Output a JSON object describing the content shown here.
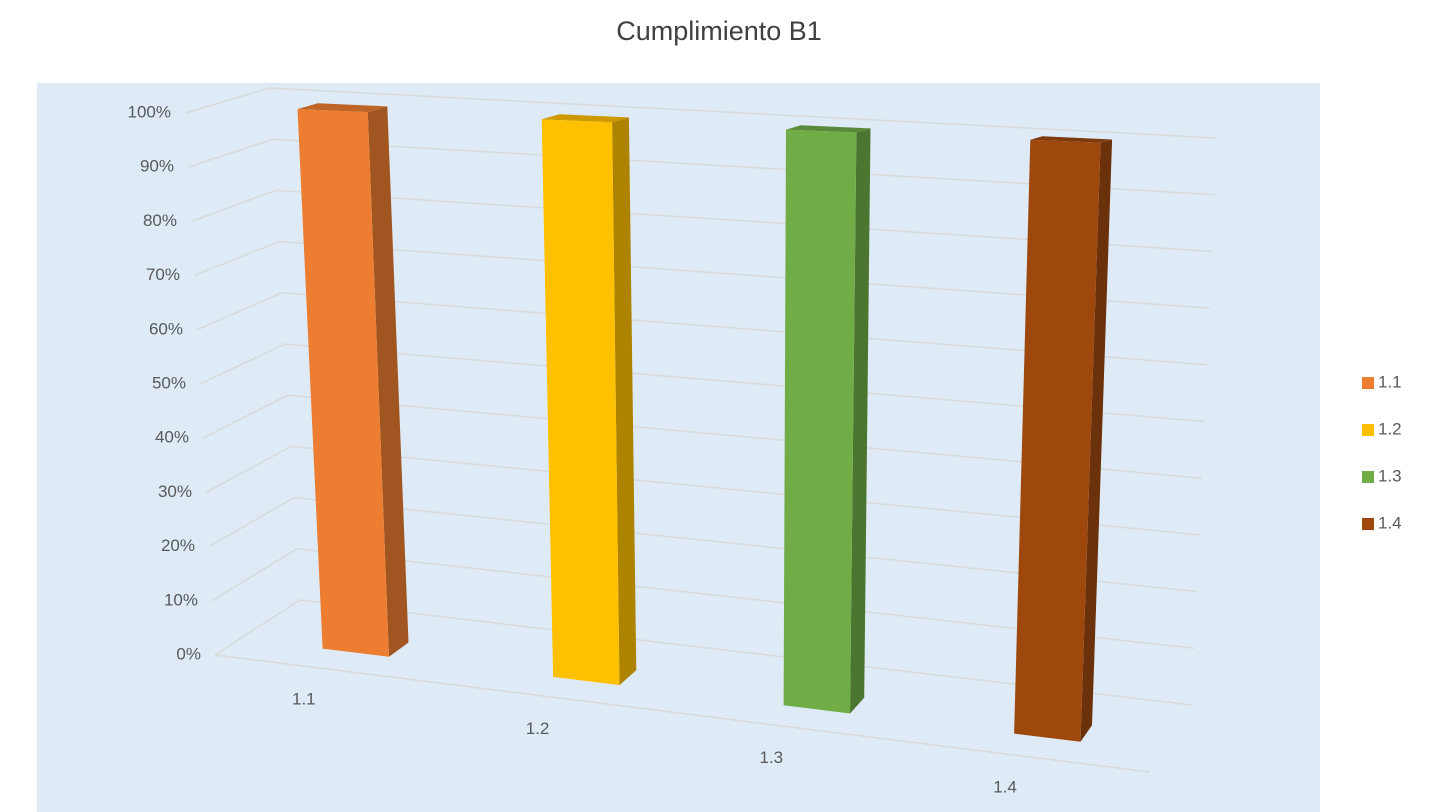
{
  "chart_data": {
    "type": "bar3d",
    "title": "Cumplimiento B1",
    "categories": [
      "1.1",
      "1.2",
      "1.3",
      "1.4"
    ],
    "values": [
      100,
      100,
      100,
      100
    ],
    "colors": [
      "#ed7d31",
      "#ffc000",
      "#70ad47",
      "#9e480e"
    ],
    "ylim": [
      0,
      100
    ],
    "yticks": [
      {
        "value": 0,
        "label": "0%"
      },
      {
        "value": 10,
        "label": "10%"
      },
      {
        "value": 20,
        "label": "20%"
      },
      {
        "value": 30,
        "label": "30%"
      },
      {
        "value": 40,
        "label": "40%"
      },
      {
        "value": 50,
        "label": "50%"
      },
      {
        "value": 60,
        "label": "60%"
      },
      {
        "value": 70,
        "label": "70%"
      },
      {
        "value": 80,
        "label": "80%"
      },
      {
        "value": 90,
        "label": "90%"
      },
      {
        "value": 100,
        "label": "100%"
      }
    ],
    "grid": true,
    "legend": "right"
  }
}
